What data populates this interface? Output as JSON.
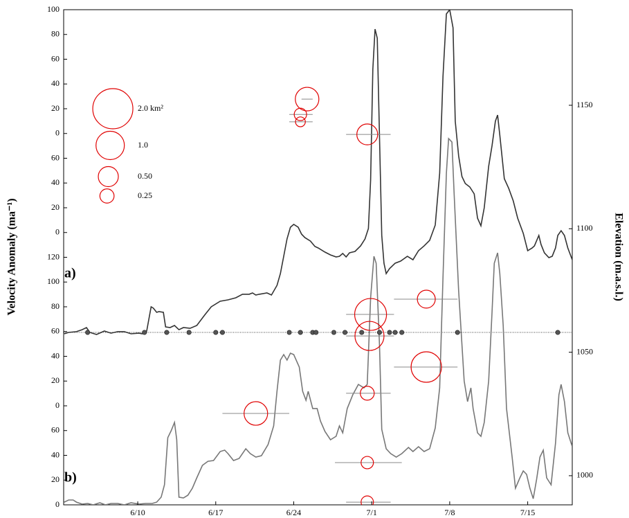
{
  "chart_data": {
    "type": "line",
    "y_label": "Velocity Anomaly (ma⁻¹)",
    "y2_label": "Elevation (m.a.s.l.)",
    "annotations": [
      "a)",
      "b)"
    ],
    "xlim": [
      154.35,
      200.0
    ],
    "xticks": [
      {
        "value": 161,
        "label": "6/10"
      },
      {
        "value": 168,
        "label": "6/17"
      },
      {
        "value": 175,
        "label": "6/24"
      },
      {
        "value": 182,
        "label": "7/1"
      },
      {
        "value": 189,
        "label": "7/8"
      },
      {
        "value": 196,
        "label": "7/15"
      }
    ],
    "ylim": [
      0,
      400
    ],
    "yticks": [
      0,
      20,
      40,
      60,
      {
        "value": 80,
        "label": "0"
      },
      {
        "value": 100,
        "label": "20"
      },
      {
        "value": 120,
        "label": "40"
      },
      {
        "value": 140,
        "label": "60"
      },
      {
        "value": 160,
        "label": "80"
      },
      {
        "value": 180,
        "label": "100"
      },
      {
        "value": 200,
        "label": "120"
      },
      {
        "value": 220,
        "label": "0"
      },
      {
        "value": 240,
        "label": "20"
      },
      {
        "value": 260,
        "label": "40"
      },
      {
        "value": 280,
        "label": "60"
      },
      {
        "value": 300,
        "label": "0"
      },
      {
        "value": 320,
        "label": "20"
      },
      {
        "value": 340,
        "label": "40"
      },
      {
        "value": 360,
        "label": "60"
      },
      {
        "value": 380,
        "label": "80"
      },
      {
        "value": 400,
        "label": "100"
      }
    ],
    "y2lim": [
      988.2,
      1188.7
    ],
    "y2ticks": [
      1000,
      1050,
      1100,
      1150
    ],
    "reference_line": 139.3,
    "series": [
      {
        "type": "line",
        "color": "#333333",
        "x": [
          154.4,
          154.8,
          155.5,
          156.0,
          156.4,
          156.7,
          157.3,
          158.0,
          158.6,
          159.2,
          159.8,
          160.4,
          161.1,
          161.4,
          161.8,
          162.2,
          162.4,
          162.7,
          162.9,
          163.3,
          163.5,
          163.9,
          164.3,
          164.7,
          165.1,
          165.7,
          166.3,
          167.0,
          167.6,
          168.4,
          169.1,
          169.8,
          170.4,
          171.0,
          171.3,
          171.6,
          171.9,
          172.6,
          173.0,
          173.5,
          173.8,
          174.1,
          174.4,
          174.7,
          175.0,
          175.4,
          175.7,
          176.0,
          176.5,
          176.9,
          177.2,
          177.8,
          178.3,
          178.8,
          179.1,
          179.4,
          179.7,
          180.0,
          180.5,
          181.0,
          181.4,
          181.7,
          181.9,
          182.1,
          182.3,
          182.5,
          182.7,
          182.9,
          183.1,
          183.3,
          183.6,
          184.1,
          184.6,
          185.2,
          185.7,
          186.2,
          186.7,
          187.2,
          187.7,
          188.1,
          188.4,
          188.7,
          189.0,
          189.3,
          189.5,
          189.8,
          190.1,
          190.4,
          190.8,
          191.2,
          191.5,
          191.8,
          192.1,
          192.5,
          192.8,
          193.1,
          193.3,
          193.5,
          193.9,
          194.3,
          194.7,
          195.1,
          195.6,
          196.0,
          196.4,
          196.6,
          197.0,
          197.2,
          197.5,
          197.9,
          198.2,
          198.5,
          198.7,
          199.0,
          199.3,
          199.6,
          200.0
        ],
        "values": [
          138.2,
          139.3,
          139.9,
          141.5,
          143.2,
          139.3,
          137.6,
          140.4,
          138.7,
          139.9,
          139.9,
          138.2,
          138.7,
          138.2,
          140.4,
          160.0,
          158.9,
          155.5,
          156.1,
          155.5,
          143.8,
          143.2,
          144.9,
          141.5,
          143.2,
          142.6,
          144.9,
          153.3,
          160.0,
          164.5,
          165.6,
          167.3,
          170.1,
          170.1,
          171.2,
          169.5,
          170.1,
          171.2,
          169.5,
          177.3,
          186.8,
          200.8,
          214.8,
          224.3,
          226.6,
          224.3,
          218.7,
          215.9,
          213.1,
          208.7,
          207.5,
          204.2,
          201.9,
          200.3,
          200.8,
          203.1,
          200.3,
          203.6,
          204.7,
          209.2,
          214.8,
          223.2,
          262.4,
          351.9,
          384.3,
          377.0,
          295.9,
          217.6,
          195.2,
          186.8,
          190.8,
          195.2,
          196.9,
          200.8,
          198.0,
          205.3,
          209.2,
          213.7,
          226.0,
          268.0,
          346.3,
          396.6,
          400.0,
          385.4,
          309.9,
          281.9,
          265.2,
          259.6,
          256.8,
          251.2,
          231.6,
          225.4,
          240.0,
          273.5,
          290.3,
          309.9,
          314.9,
          298.7,
          263.5,
          255.6,
          245.6,
          231.6,
          219.3,
          205.3,
          207.5,
          209.2,
          217.6,
          210.3,
          203.6,
          199.7,
          200.8,
          207.5,
          217.6,
          221.5,
          217.6,
          207.5,
          198.0
        ]
      },
      {
        "type": "line",
        "color": "#777777",
        "x": [
          154.4,
          154.8,
          155.2,
          155.5,
          156.0,
          156.5,
          157.0,
          157.6,
          158.1,
          158.6,
          159.2,
          159.8,
          160.4,
          161.1,
          161.7,
          162.3,
          162.7,
          163.1,
          163.4,
          163.7,
          164.0,
          164.3,
          164.5,
          164.7,
          165.1,
          165.5,
          165.9,
          166.3,
          166.8,
          167.3,
          167.8,
          168.4,
          168.8,
          169.1,
          169.6,
          170.1,
          170.7,
          171.1,
          171.6,
          172.1,
          172.7,
          173.2,
          173.5,
          173.8,
          174.1,
          174.4,
          174.7,
          175.0,
          175.5,
          175.8,
          176.1,
          176.3,
          176.7,
          177.1,
          177.4,
          177.8,
          178.3,
          178.8,
          179.1,
          179.4,
          179.8,
          180.3,
          180.8,
          181.3,
          181.6,
          181.9,
          182.2,
          182.4,
          182.7,
          182.9,
          183.3,
          183.7,
          184.2,
          184.7,
          185.3,
          185.7,
          186.2,
          186.7,
          187.2,
          187.7,
          188.1,
          188.4,
          188.7,
          188.9,
          189.2,
          189.4,
          189.8,
          190.3,
          190.6,
          190.9,
          191.1,
          191.5,
          191.8,
          192.1,
          192.5,
          192.8,
          193.0,
          193.3,
          193.5,
          193.8,
          194.1,
          194.6,
          194.9,
          195.3,
          195.6,
          195.9,
          196.2,
          196.5,
          196.8,
          197.1,
          197.4,
          197.7,
          198.1,
          198.5,
          198.8,
          199.0,
          199.3,
          199.6,
          200.0
        ],
        "values": [
          2.2,
          3.9,
          3.9,
          2.2,
          0.6,
          1.1,
          0,
          1.7,
          0,
          1.1,
          1.1,
          0,
          1.7,
          0.6,
          1.1,
          1.1,
          2.2,
          6.2,
          16.2,
          54.3,
          59.9,
          66.6,
          52.6,
          6.2,
          5.6,
          7.8,
          13.4,
          21.8,
          31.9,
          35.2,
          35.8,
          43.1,
          44.2,
          41.4,
          35.8,
          37.5,
          45.3,
          41.4,
          38.6,
          39.7,
          48.7,
          63.8,
          91.7,
          116.9,
          121.4,
          116.9,
          122.5,
          121.4,
          111.3,
          91.7,
          84.5,
          91.7,
          77.8,
          77.8,
          67.7,
          59.3,
          52.6,
          55.4,
          63.8,
          58.2,
          77.8,
          88.9,
          97.3,
          94.5,
          97.3,
          167.3,
          200.8,
          195.2,
          128.1,
          61.0,
          45.3,
          41.4,
          38.6,
          41.4,
          46.4,
          43.1,
          47.0,
          43.1,
          45.3,
          62.1,
          94.5,
          184.0,
          268.0,
          295.9,
          293.1,
          251.2,
          172.9,
          100.1,
          83.4,
          94.5,
          77.8,
          58.2,
          55.4,
          66.6,
          100.1,
          156.1,
          195.2,
          203.6,
          186.8,
          144.9,
          77.8,
          38.6,
          13.4,
          21.8,
          27.4,
          24.6,
          13.4,
          5.0,
          20.7,
          38.6,
          44.2,
          21.8,
          16.2,
          49.8,
          88.9,
          97.3,
          83.4,
          58.2,
          47.0
        ]
      },
      {
        "type": "bubble",
        "axis": "y2",
        "color": "#e00000",
        "bar_color": "#888888",
        "x": [
          176.2,
          175.6,
          175.6,
          181.6,
          181.9,
          186.9,
          181.8,
          186.9,
          181.6,
          171.6,
          181.6,
          181.6
        ],
        "values": [
          1152.5,
          1146.3,
          1143.3,
          1138.2,
          1065.3,
          1071.5,
          1056.6,
          1044.0,
          1033.4,
          1025.2,
          1005.3,
          989.3
        ],
        "size": [
          0.69,
          0.19,
          0.12,
          0.54,
          1.26,
          0.4,
          1.05,
          1.15,
          0.24,
          0.69,
          0.19,
          0.19
        ],
        "x_start": [
          175.7,
          174.6,
          174.6,
          179.7,
          179.7,
          184.0,
          179.7,
          184.0,
          179.7,
          168.6,
          178.7,
          179.7
        ],
        "x_end": [
          176.7,
          176.7,
          176.7,
          183.7,
          184.0,
          189.7,
          184.0,
          189.7,
          183.7,
          174.6,
          184.7,
          183.7
        ]
      },
      {
        "type": "dots",
        "color": "#555555",
        "x": [
          156.5,
          161.6,
          163.6,
          165.6,
          168.0,
          168.6,
          174.6,
          175.6,
          176.7,
          177.0,
          178.6,
          179.6,
          181.1,
          182.7,
          183.6,
          184.1,
          184.7,
          189.7,
          198.7
        ],
        "values": [
          139.3,
          139.3,
          139.3,
          139.3,
          139.3,
          139.3,
          139.3,
          139.3,
          139.3,
          139.3,
          139.3,
          139.3,
          139.3,
          139.3,
          139.3,
          139.3,
          139.3,
          139.3,
          139.3
        ]
      }
    ],
    "size_legend": {
      "sizes": [
        2.0,
        1.0,
        0.5,
        0.25
      ],
      "labels": [
        "2.0 km²",
        "1.0",
        "0.50",
        "0.25"
      ],
      "color": "#e00000"
    }
  }
}
